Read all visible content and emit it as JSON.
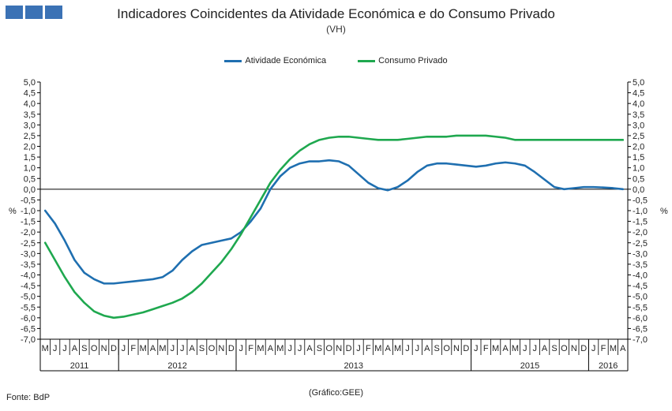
{
  "header": {
    "title": "Indicadores Coincidentes da Atividade Económica e do Consumo Privado",
    "subtitle": "(VH)"
  },
  "footer": {
    "source": "Fonte: BdP",
    "note": "(Gráfico:GEE)"
  },
  "colors": {
    "brand": "#3b72b5",
    "activity": "#1f6fb0",
    "consumption": "#1fa84f",
    "axis": "#000000"
  },
  "chart_data": {
    "type": "line",
    "yunit_left": "%",
    "yunit_right": "%",
    "ylim": [
      -7.0,
      5.0
    ],
    "yticks": [
      "5,0",
      "4,5",
      "4,0",
      "3,5",
      "3,0",
      "2,5",
      "2,0",
      "1,5",
      "1,0",
      "0,5",
      "0,0",
      "-0,5",
      "-1,0",
      "-1,5",
      "-2,0",
      "-2,5",
      "-3,0",
      "-3,5",
      "-4,0",
      "-4,5",
      "-5,0",
      "-5,5",
      "-6,0",
      "-6,5",
      "-7,0"
    ],
    "ytick_values": [
      5.0,
      4.5,
      4.0,
      3.5,
      3.0,
      2.5,
      2.0,
      1.5,
      1.0,
      0.5,
      0.0,
      -0.5,
      -1.0,
      -1.5,
      -2.0,
      -2.5,
      -3.0,
      -3.5,
      -4.0,
      -4.5,
      -5.0,
      -5.5,
      -6.0,
      -6.5,
      -7.0
    ],
    "categories": [
      "M",
      "J",
      "J",
      "A",
      "S",
      "O",
      "N",
      "D",
      "J",
      "F",
      "M",
      "A",
      "M",
      "J",
      "J",
      "A",
      "S",
      "O",
      "N",
      "D",
      "J",
      "F",
      "M",
      "A",
      "M",
      "J",
      "J",
      "A",
      "S",
      "O",
      "N",
      "D",
      "J",
      "F",
      "M",
      "A",
      "M",
      "J",
      "J",
      "A",
      "S",
      "O",
      "N",
      "D",
      "J",
      "F",
      "M",
      "A",
      "M",
      "J",
      "J",
      "A",
      "S",
      "O",
      "N",
      "D",
      "J",
      "F",
      "M",
      "A"
    ],
    "years": [
      {
        "label": "2011",
        "start": 0,
        "end": 8
      },
      {
        "label": "2012",
        "start": 8,
        "end": 20
      },
      {
        "label": "2013",
        "start": 20,
        "end": 44
      },
      {
        "label": "2015",
        "start": 44,
        "end": 56
      },
      {
        "label": "2016",
        "start": 56,
        "end": 60
      }
    ],
    "legend_position": "top",
    "grid": false,
    "series": [
      {
        "name": "Atividade Económica",
        "color": "#1f6fb0",
        "values": [
          -1.0,
          -1.6,
          -2.4,
          -3.3,
          -3.9,
          -4.2,
          -4.4,
          -4.4,
          -4.35,
          -4.3,
          -4.25,
          -4.2,
          -4.1,
          -3.8,
          -3.3,
          -2.9,
          -2.6,
          -2.5,
          -2.4,
          -2.3,
          -2.0,
          -1.5,
          -0.9,
          0.0,
          0.6,
          1.0,
          1.2,
          1.3,
          1.3,
          1.35,
          1.3,
          1.1,
          0.7,
          0.3,
          0.05,
          -0.05,
          0.1,
          0.4,
          0.8,
          1.1,
          1.2,
          1.2,
          1.15,
          1.1,
          1.05,
          1.1,
          1.2,
          1.25,
          1.2,
          1.1,
          0.8,
          0.45,
          0.1,
          0.0,
          0.05,
          0.1,
          0.1,
          0.08,
          0.05,
          0.0
        ]
      },
      {
        "name": "Consumo Privado",
        "color": "#1fa84f",
        "values": [
          -2.5,
          -3.3,
          -4.1,
          -4.8,
          -5.3,
          -5.7,
          -5.9,
          -6.0,
          -5.95,
          -5.85,
          -5.75,
          -5.6,
          -5.45,
          -5.3,
          -5.1,
          -4.8,
          -4.4,
          -3.9,
          -3.4,
          -2.8,
          -2.1,
          -1.3,
          -0.5,
          0.3,
          0.9,
          1.4,
          1.8,
          2.1,
          2.3,
          2.4,
          2.45,
          2.45,
          2.4,
          2.35,
          2.3,
          2.3,
          2.3,
          2.35,
          2.4,
          2.45,
          2.45,
          2.45,
          2.5,
          2.5,
          2.5,
          2.5,
          2.45,
          2.4,
          2.3,
          2.3,
          2.3,
          2.3,
          2.3,
          2.3,
          2.3,
          2.3,
          2.3,
          2.3,
          2.3,
          2.3
        ]
      }
    ]
  }
}
